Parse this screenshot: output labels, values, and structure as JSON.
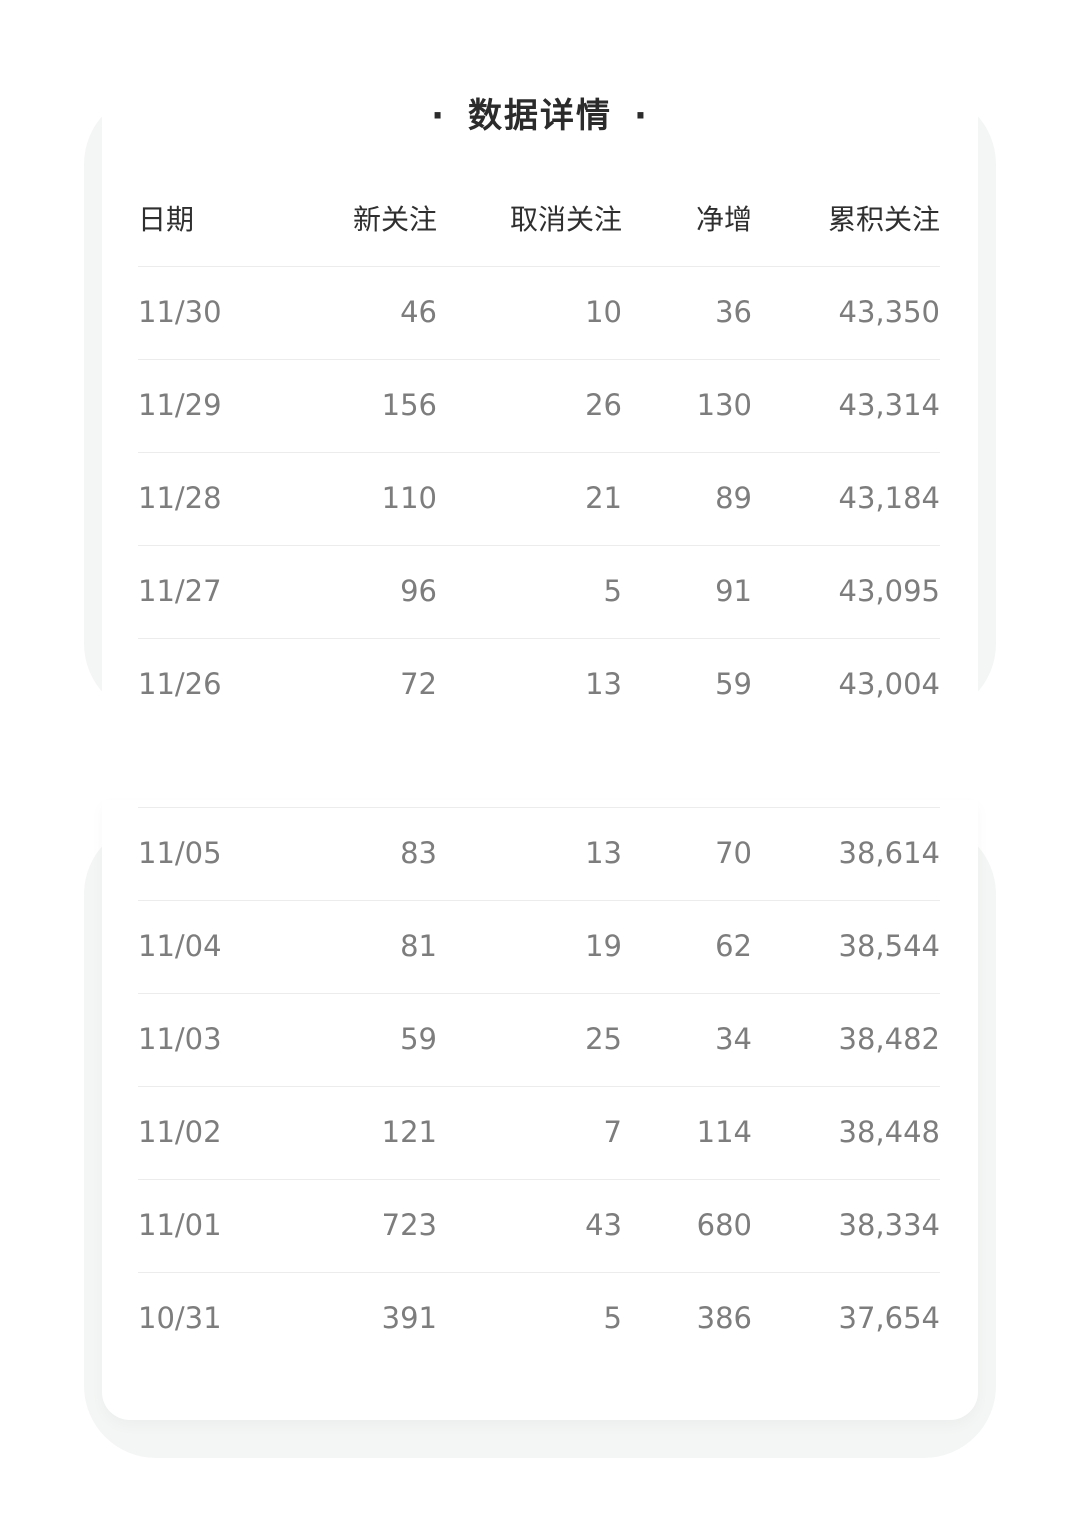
{
  "title": "数据详情",
  "title_dot": "·",
  "headers": {
    "date": "日期",
    "new": "新关注",
    "cancel": "取消关注",
    "net": "净增",
    "total": "累积关注"
  },
  "section_top": [
    {
      "date": "11/30",
      "new": "46",
      "cancel": "10",
      "net": "36",
      "total": "43,350"
    },
    {
      "date": "11/29",
      "new": "156",
      "cancel": "26",
      "net": "130",
      "total": "43,314"
    },
    {
      "date": "11/28",
      "new": "110",
      "cancel": "21",
      "net": "89",
      "total": "43,184"
    },
    {
      "date": "11/27",
      "new": "96",
      "cancel": "5",
      "net": "91",
      "total": "43,095"
    },
    {
      "date": "11/26",
      "new": "72",
      "cancel": "13",
      "net": "59",
      "total": "43,004"
    }
  ],
  "section_bottom": [
    {
      "date": "11/05",
      "new": "83",
      "cancel": "13",
      "net": "70",
      "total": "38,614"
    },
    {
      "date": "11/04",
      "new": "81",
      "cancel": "19",
      "net": "62",
      "total": "38,544"
    },
    {
      "date": "11/03",
      "new": "59",
      "cancel": "25",
      "net": "34",
      "total": "38,482"
    },
    {
      "date": "11/02",
      "new": "121",
      "cancel": "7",
      "net": "114",
      "total": "38,448"
    },
    {
      "date": "11/01",
      "new": "723",
      "cancel": "43",
      "net": "680",
      "total": "38,334"
    },
    {
      "date": "10/31",
      "new": "391",
      "cancel": "5",
      "net": "386",
      "total": "37,654"
    }
  ]
}
